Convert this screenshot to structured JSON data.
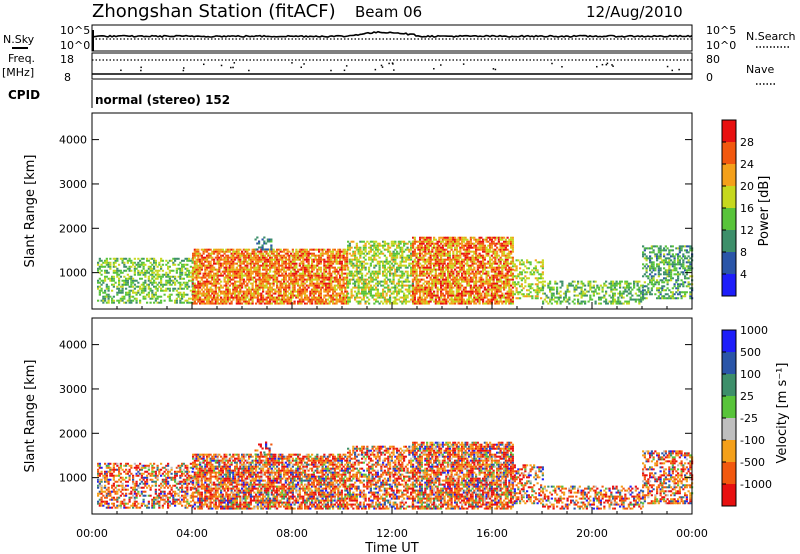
{
  "header": {
    "title": "Zhongshan Station (fitACF)",
    "beam": "Beam 06",
    "date": "12/Aug/2010"
  },
  "params_panel": {
    "nsky_label": "N.Sky",
    "nsearch_label": "N.Search",
    "freq_label": "Freq.",
    "freq_unit": "[MHz]",
    "nave_label": "Nave",
    "cpid_label": "CPID",
    "cpid_text": "normal (stereo) 152",
    "noise_ticks": [
      "10^5",
      "10^0"
    ],
    "freq_ticks": [
      "18",
      "8"
    ],
    "nave_ticks": [
      "80",
      "0"
    ]
  },
  "colors": {
    "power": [
      "#1e1efa",
      "#2a55a8",
      "#3d8f6a",
      "#58c43a",
      "#c6d81e",
      "#f4a01a",
      "#f2580e",
      "#e81010"
    ],
    "velocity": [
      "#e81010",
      "#f2580e",
      "#f4a01a",
      "#bfbfbf",
      "#58c43a",
      "#3d8f6a",
      "#2a55a8",
      "#1e1efa"
    ]
  },
  "chart_data": [
    {
      "type": "heatmap",
      "panel": "power",
      "ylabel": "Slant Range [km]",
      "y_ticks": [
        1000,
        2000,
        3000,
        4000
      ],
      "ylim": [
        180,
        4600
      ],
      "xlim": [
        0,
        24
      ],
      "colorbar_label": "Power [dB]",
      "colorbar_ticks": [
        "4",
        "8",
        "12",
        "16",
        "20",
        "24",
        "28"
      ],
      "colorbar_range": [
        0,
        32
      ]
    },
    {
      "type": "heatmap",
      "panel": "velocity",
      "ylabel": "Slant Range [km]",
      "y_ticks": [
        1000,
        2000,
        3000,
        4000
      ],
      "ylim": [
        180,
        4600
      ],
      "xlim": [
        0,
        24
      ],
      "colorbar_label": "Velocity [m s⁻¹]",
      "colorbar_ticks": [
        "-1000",
        "-500",
        "-100",
        "-25",
        "25",
        "100",
        "500",
        "1000"
      ]
    }
  ],
  "xaxis": {
    "label": "Time UT",
    "ticks": [
      "00:00",
      "04:00",
      "08:00",
      "12:00",
      "16:00",
      "20:00",
      "00:00"
    ]
  }
}
